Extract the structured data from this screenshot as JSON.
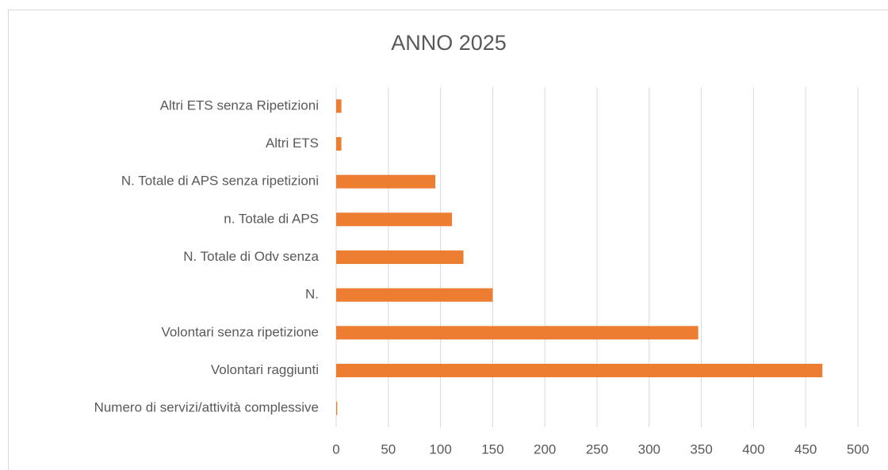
{
  "chart_data": {
    "type": "barh",
    "title": "ANNO 2025",
    "categories": [
      "Altri ETS senza Ripetizioni",
      "Altri ETS",
      "N. Totale di APS senza ripetizioni",
      "n. Totale di APS",
      "N. Totale di Odv senza",
      "N.",
      "Volontari senza ripetizione",
      "Volontari raggiunti",
      "Numero di servizi/attività complessive"
    ],
    "values": [
      5,
      5,
      95,
      111,
      122,
      150,
      347,
      466,
      1
    ],
    "color": "#ed7d31",
    "xlim": [
      0,
      500
    ],
    "xticks": [
      0,
      50,
      100,
      150,
      200,
      250,
      300,
      350,
      400,
      450,
      500
    ],
    "grid": true
  }
}
